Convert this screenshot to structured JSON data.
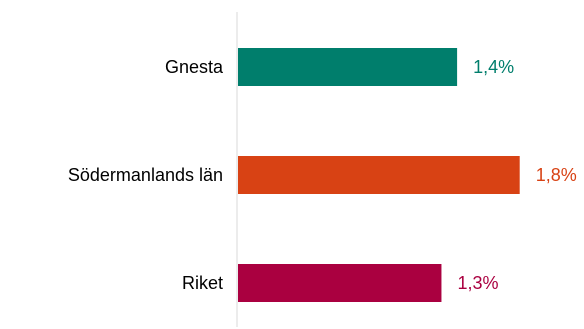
{
  "chart_data": {
    "type": "bar",
    "orientation": "horizontal",
    "categories": [
      "Gnesta",
      "Södermanlands län",
      "Riket"
    ],
    "values": [
      1.4,
      1.8,
      1.3
    ],
    "value_labels": [
      "1,4%",
      "1,8%",
      "1,3%"
    ],
    "colors": [
      "#007E6C",
      "#D84214",
      "#AA0040"
    ],
    "axis_color": "#D9D9D9",
    "xlim": [
      0,
      2.4
    ],
    "title": "",
    "xlabel": "",
    "ylabel": "",
    "grid": false,
    "legend": "none"
  }
}
